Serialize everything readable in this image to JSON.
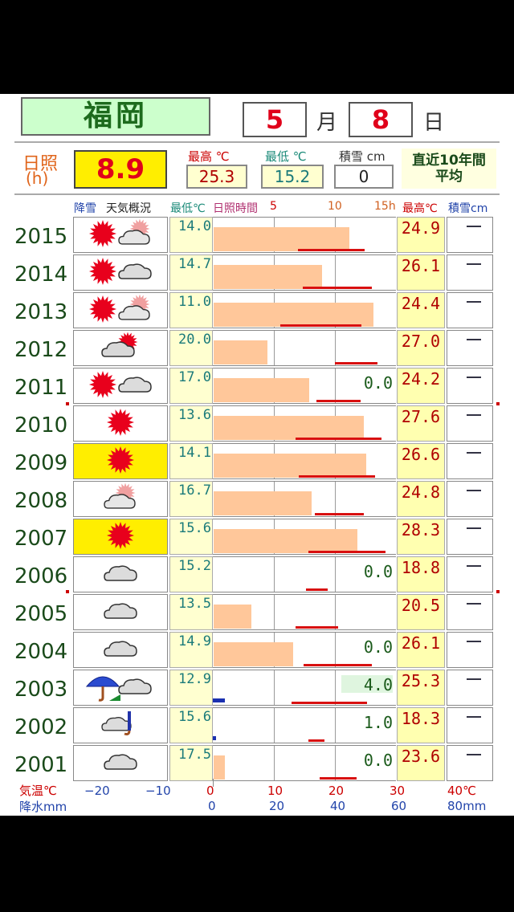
{
  "header": {
    "city": "福岡",
    "month": "5",
    "month_unit": "月",
    "day": "8",
    "day_unit": "日"
  },
  "summary": {
    "sunshine_label_line1": "日照",
    "sunshine_label_line2": "(h)",
    "sunshine_value": "8.9",
    "high_label": "最高 ℃",
    "high_value": "25.3",
    "low_label": "最低 ℃",
    "low_value": "15.2",
    "snow_label": "積雪 cm",
    "snow_value": "0",
    "avg_label_line1": "直近10年間",
    "avg_label_line2": "平均"
  },
  "columns": {
    "snowfall": "降雪",
    "weather": "天気概況",
    "low": "最低℃",
    "sunshine": "日照時間",
    "s5": "5",
    "s10": "10",
    "s15": "15h",
    "high": "最高℃",
    "snow": "積雪cm"
  },
  "rows": [
    {
      "year": "2015",
      "icons": [
        "sun",
        "cloud-sun"
      ],
      "low": "14.0",
      "sun_h": 11.1,
      "tmin": 14.0,
      "tmax": 24.9,
      "precip": "",
      "high": "24.9",
      "snow": "—",
      "sunny": false
    },
    {
      "year": "2014",
      "icons": [
        "sun",
        "cloud"
      ],
      "low": "14.7",
      "sun_h": 8.9,
      "tmin": 14.7,
      "tmax": 26.1,
      "precip": "",
      "high": "26.1",
      "snow": "—",
      "sunny": false
    },
    {
      "year": "2013",
      "icons": [
        "sun",
        "cloud-sun"
      ],
      "low": "11.0",
      "sun_h": 13.1,
      "tmin": 11.0,
      "tmax": 24.4,
      "precip": "",
      "high": "24.4",
      "snow": "—",
      "sunny": false
    },
    {
      "year": "2012",
      "icons": [
        "cloud-sun-r"
      ],
      "low": "20.0",
      "sun_h": 4.4,
      "tmin": 20.0,
      "tmax": 27.0,
      "precip": "",
      "high": "27.0",
      "snow": "—",
      "sunny": false
    },
    {
      "year": "2011",
      "icons": [
        "sun",
        "cloud"
      ],
      "low": "17.0",
      "sun_h": 7.8,
      "tmin": 17.0,
      "tmax": 24.2,
      "precip": "0.0",
      "high": "24.2",
      "snow": "—",
      "sunny": false
    },
    {
      "year": "2010",
      "icons": [
        "sun"
      ],
      "low": "13.6",
      "sun_h": 12.3,
      "tmin": 13.6,
      "tmax": 27.6,
      "precip": "",
      "high": "27.6",
      "snow": "—",
      "sunny": false
    },
    {
      "year": "2009",
      "icons": [
        "sun"
      ],
      "low": "14.1",
      "sun_h": 12.5,
      "tmin": 14.1,
      "tmax": 26.6,
      "precip": "",
      "high": "26.6",
      "snow": "—",
      "sunny": true
    },
    {
      "year": "2008",
      "icons": [
        "cloud-sun"
      ],
      "low": "16.7",
      "sun_h": 8.0,
      "tmin": 16.7,
      "tmax": 24.8,
      "precip": "",
      "high": "24.8",
      "snow": "—",
      "sunny": false
    },
    {
      "year": "2007",
      "icons": [
        "sun"
      ],
      "low": "15.6",
      "sun_h": 11.8,
      "tmin": 15.6,
      "tmax": 28.3,
      "precip": "",
      "high": "28.3",
      "snow": "—",
      "sunny": true
    },
    {
      "year": "2006",
      "icons": [
        "cloud"
      ],
      "low": "15.2",
      "sun_h": 0,
      "tmin": 15.2,
      "tmax": 18.8,
      "precip": "0.0",
      "high": "18.8",
      "snow": "—",
      "sunny": false
    },
    {
      "year": "2005",
      "icons": [
        "cloud"
      ],
      "low": "13.5",
      "sun_h": 3.1,
      "tmin": 13.5,
      "tmax": 20.5,
      "precip": "",
      "high": "20.5",
      "snow": "—",
      "sunny": false
    },
    {
      "year": "2004",
      "icons": [
        "cloud"
      ],
      "low": "14.9",
      "sun_h": 6.5,
      "tmin": 14.9,
      "tmax": 26.1,
      "precip": "0.0",
      "high": "26.1",
      "snow": "—",
      "sunny": false
    },
    {
      "year": "2003",
      "icons": [
        "umbrella",
        "cloud"
      ],
      "low": "12.9",
      "sun_h": 0,
      "tmin": 12.9,
      "tmax": 25.3,
      "precip": "4.0",
      "rain_mm": 4.0,
      "high": "25.3",
      "snow": "—",
      "sunny": false
    },
    {
      "year": "2002",
      "icons": [
        "cloud-umbrella"
      ],
      "low": "15.6",
      "sun_h": 0,
      "tmin": 15.6,
      "tmax": 18.3,
      "precip": "1.0",
      "rain_mm": 1.0,
      "high": "18.3",
      "snow": "—",
      "sunny": false
    },
    {
      "year": "2001",
      "icons": [
        "cloud"
      ],
      "low": "17.5",
      "sun_h": 0.9,
      "tmin": 17.5,
      "tmax": 23.6,
      "precip": "0.0",
      "high": "23.6",
      "snow": "—",
      "sunny": false
    }
  ],
  "axis": {
    "temp_label": "気温℃",
    "precip_label": "降水mm",
    "temp_ticks": [
      "−20",
      "−10",
      "0",
      "10",
      "20",
      "30",
      "40℃"
    ],
    "precip_ticks": [
      "0",
      "20",
      "40",
      "60",
      "80mm"
    ]
  },
  "colors": {
    "sun_bar": "#ffc79a",
    "temp_line": "#d81010",
    "rain_bar": "#1a30b0",
    "sunny_bg": "#ffee00"
  }
}
